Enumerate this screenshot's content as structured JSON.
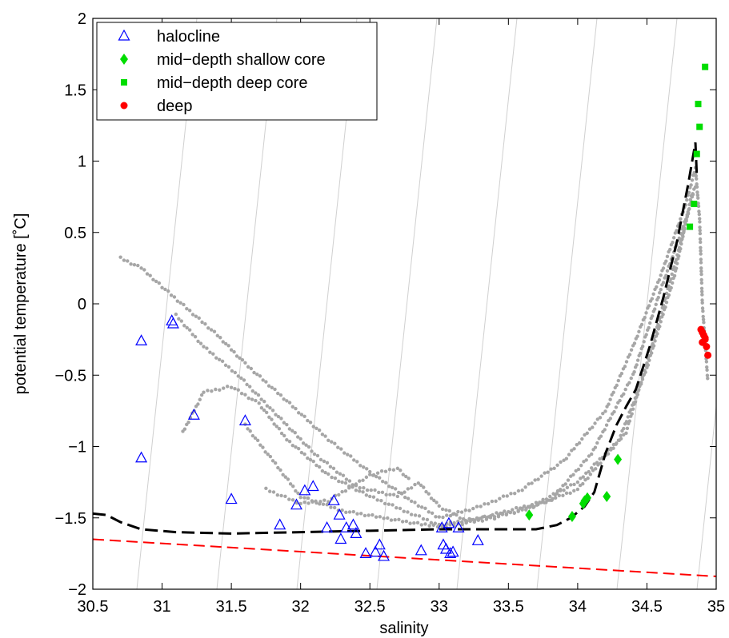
{
  "chart_data": {
    "type": "scatter",
    "title": "",
    "xlabel": "salinity",
    "ylabel": "potential temperature [˚C]",
    "xlim": [
      30.5,
      35
    ],
    "ylim": [
      -2,
      2
    ],
    "xticks": [
      30.5,
      31,
      31.5,
      32,
      32.5,
      33,
      33.5,
      34,
      34.5,
      35
    ],
    "xtick_labels": [
      "30.5",
      "31",
      "31.5",
      "32",
      "32.5",
      "33",
      "33.5",
      "34",
      "34.5",
      "35"
    ],
    "yticks": [
      -2,
      -1.5,
      -1,
      -0.5,
      0,
      0.5,
      1,
      1.5,
      2
    ],
    "ytick_labels": [
      "−2",
      "−1.5",
      "−1",
      "−0.5",
      "0",
      "0.5",
      "1",
      "1.5",
      "2"
    ],
    "grid": false,
    "legend_position": "top-left",
    "colors": {
      "halocline": "#0000ff",
      "shallow_core": "#00dd00",
      "deep_core": "#00dd00",
      "deep": "#ff0000",
      "background": "#a6a6a6",
      "profile": "#000000",
      "freezing": "#ff0000",
      "isopycnal": "#d0d0d0"
    },
    "series": [
      {
        "name": "halocline",
        "marker": "triangle",
        "points": [
          [
            30.85,
            -0.26
          ],
          [
            30.85,
            -1.08
          ],
          [
            31.07,
            -0.12
          ],
          [
            31.08,
            -0.14
          ],
          [
            31.23,
            -0.78
          ],
          [
            31.5,
            -1.37
          ],
          [
            31.6,
            -0.82
          ],
          [
            31.85,
            -1.55
          ],
          [
            31.97,
            -1.41
          ],
          [
            32.03,
            -1.31
          ],
          [
            32.09,
            -1.28
          ],
          [
            32.19,
            -1.57
          ],
          [
            32.24,
            -1.38
          ],
          [
            32.28,
            -1.48
          ],
          [
            32.29,
            -1.65
          ],
          [
            32.33,
            -1.57
          ],
          [
            32.38,
            -1.55
          ],
          [
            32.4,
            -1.61
          ],
          [
            32.47,
            -1.75
          ],
          [
            32.54,
            -1.74
          ],
          [
            32.57,
            -1.69
          ],
          [
            32.6,
            -1.77
          ],
          [
            32.87,
            -1.73
          ],
          [
            33.02,
            -1.57
          ],
          [
            33.03,
            -1.69
          ],
          [
            33.05,
            -1.72
          ],
          [
            33.07,
            -1.54
          ],
          [
            33.08,
            -1.75
          ],
          [
            33.1,
            -1.74
          ],
          [
            33.14,
            -1.57
          ],
          [
            33.28,
            -1.66
          ]
        ]
      },
      {
        "name": "mid−depth shallow core",
        "marker": "diamond",
        "points": [
          [
            33.65,
            -1.48
          ],
          [
            33.96,
            -1.49
          ],
          [
            34.04,
            -1.4
          ],
          [
            34.05,
            -1.38
          ],
          [
            34.07,
            -1.36
          ],
          [
            34.21,
            -1.35
          ],
          [
            34.29,
            -1.09
          ]
        ]
      },
      {
        "name": "mid−depth deep core",
        "marker": "square",
        "points": [
          [
            34.81,
            0.54
          ],
          [
            34.84,
            0.7
          ],
          [
            34.86,
            1.05
          ],
          [
            34.87,
            1.4
          ],
          [
            34.88,
            1.24
          ],
          [
            34.92,
            1.66
          ]
        ]
      },
      {
        "name": "deep",
        "marker": "circle",
        "points": [
          [
            34.89,
            -0.18
          ],
          [
            34.9,
            -0.2
          ],
          [
            34.91,
            -0.22
          ],
          [
            34.92,
            -0.24
          ],
          [
            34.9,
            -0.27
          ],
          [
            34.92,
            -0.25
          ],
          [
            34.93,
            -0.3
          ],
          [
            34.94,
            -0.36
          ]
        ]
      },
      {
        "name": "",
        "kind": "background-dots",
        "paths": [
          [
            [
              30.7,
              0.32
            ],
            [
              30.85,
              0.25
            ],
            [
              31.0,
              0.12
            ],
            [
              31.2,
              -0.05
            ],
            [
              31.4,
              -0.22
            ],
            [
              31.6,
              -0.42
            ],
            [
              31.9,
              -0.68
            ],
            [
              32.2,
              -0.95
            ],
            [
              32.5,
              -1.18
            ],
            [
              32.8,
              -1.38
            ],
            [
              33.0,
              -1.5
            ],
            [
              33.3,
              -1.42
            ],
            [
              33.6,
              -1.3
            ],
            [
              33.9,
              -1.1
            ],
            [
              34.2,
              -0.75
            ],
            [
              34.4,
              -0.3
            ],
            [
              34.6,
              0.2
            ],
            [
              34.78,
              0.7
            ],
            [
              34.85,
              0.95
            ],
            [
              34.88,
              0.6
            ],
            [
              34.9,
              0.0
            ],
            [
              34.94,
              -0.55
            ]
          ],
          [
            [
              31.15,
              -0.9
            ],
            [
              31.3,
              -0.62
            ],
            [
              31.5,
              -0.58
            ],
            [
              31.7,
              -0.7
            ],
            [
              31.9,
              -0.95
            ],
            [
              32.2,
              -1.2
            ],
            [
              32.5,
              -1.35
            ],
            [
              32.8,
              -1.47
            ],
            [
              33.0,
              -1.55
            ],
            [
              33.3,
              -1.5
            ],
            [
              33.7,
              -1.4
            ],
            [
              34.0,
              -1.25
            ],
            [
              34.3,
              -0.95
            ],
            [
              34.5,
              -0.45
            ],
            [
              34.7,
              0.2
            ],
            [
              34.82,
              0.75
            ],
            [
              34.86,
              0.85
            ]
          ],
          [
            [
              31.1,
              -0.08
            ],
            [
              31.3,
              -0.3
            ],
            [
              31.55,
              -0.5
            ],
            [
              31.8,
              -0.75
            ],
            [
              32.1,
              -1.05
            ],
            [
              32.4,
              -1.28
            ],
            [
              32.7,
              -1.35
            ],
            [
              32.85,
              -1.25
            ],
            [
              33.0,
              -1.42
            ],
            [
              33.2,
              -1.52
            ],
            [
              33.6,
              -1.45
            ],
            [
              34.0,
              -1.3
            ],
            [
              34.35,
              -0.9
            ],
            [
              34.55,
              -0.25
            ],
            [
              34.75,
              0.45
            ],
            [
              34.84,
              0.8
            ]
          ],
          [
            [
              31.6,
              -0.85
            ],
            [
              31.8,
              -1.1
            ],
            [
              32.0,
              -1.35
            ],
            [
              32.3,
              -1.45
            ],
            [
              32.6,
              -1.5
            ],
            [
              32.9,
              -1.55
            ],
            [
              33.05,
              -1.56
            ],
            [
              33.4,
              -1.5
            ],
            [
              33.8,
              -1.38
            ],
            [
              34.1,
              -1.05
            ],
            [
              34.4,
              -0.5
            ],
            [
              34.6,
              0.1
            ],
            [
              34.8,
              0.65
            ]
          ],
          [
            [
              31.75,
              -1.3
            ],
            [
              32.0,
              -1.4
            ],
            [
              32.2,
              -1.38
            ],
            [
              32.5,
              -1.2
            ],
            [
              32.7,
              -1.15
            ],
            [
              32.8,
              -1.25
            ]
          ]
        ]
      },
      {
        "name": "",
        "kind": "profile",
        "points": [
          [
            30.5,
            -1.47
          ],
          [
            30.6,
            -1.48
          ],
          [
            30.7,
            -1.53
          ],
          [
            30.85,
            -1.58
          ],
          [
            31.1,
            -1.6
          ],
          [
            31.5,
            -1.61
          ],
          [
            32.0,
            -1.6
          ],
          [
            32.5,
            -1.59
          ],
          [
            33.0,
            -1.58
          ],
          [
            33.5,
            -1.58
          ],
          [
            33.7,
            -1.58
          ],
          [
            33.85,
            -1.55
          ],
          [
            33.95,
            -1.5
          ],
          [
            34.05,
            -1.42
          ],
          [
            34.12,
            -1.32
          ],
          [
            34.2,
            -1.05
          ],
          [
            34.28,
            -0.85
          ],
          [
            34.35,
            -0.72
          ],
          [
            34.42,
            -0.6
          ],
          [
            34.52,
            -0.3
          ],
          [
            34.62,
            0.05
          ],
          [
            34.72,
            0.45
          ],
          [
            34.8,
            0.85
          ],
          [
            34.85,
            1.13
          ],
          [
            34.86,
            0.9
          ]
        ]
      },
      {
        "name": "",
        "kind": "freezing-line",
        "points": [
          [
            30.5,
            -1.65
          ],
          [
            35,
            -1.91
          ]
        ]
      }
    ]
  }
}
